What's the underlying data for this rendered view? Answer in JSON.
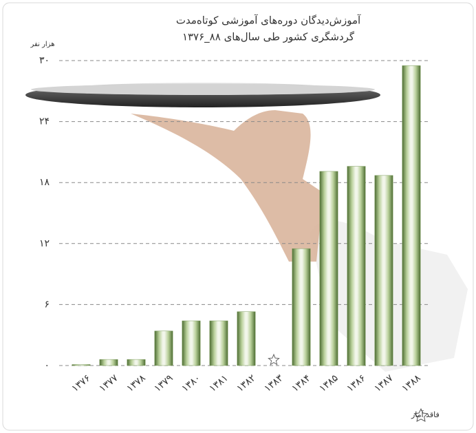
{
  "chart_data": {
    "type": "bar",
    "title": "آموزش‌دیدگان دوره‌های آموزشی کوتاه‌مدت",
    "subtitle": "گردشگری کشور طی سال‌های ۸۸_۱۳۷۶",
    "y_label": "هزار نفر",
    "note": "فاقد آمار",
    "categories": [
      "۱۳۷۶",
      "۱۳۷۷",
      "۱۳۷۸",
      "۱۳۷۹",
      "۱۳۸۰",
      "۱۳۸۱",
      "۱۳۸۲",
      "۱۳۸۳",
      "۱۳۸۴",
      "۱۳۸۵",
      "۱۳۸۶",
      "۱۳۸۷",
      "۱۳۸۸"
    ],
    "values": [
      0.1,
      0.6,
      0.6,
      3.4,
      4.4,
      4.4,
      5.3,
      null,
      11.5,
      19.1,
      19.6,
      18.7,
      29.5
    ],
    "color": "#7a9a5a",
    "ylim": [
      0,
      30
    ],
    "yticks": [
      {
        "value": 0,
        "label": "۰"
      },
      {
        "value": 6,
        "label": "۶"
      },
      {
        "value": 12,
        "label": "۱۲"
      },
      {
        "value": 18,
        "label": "۱۸"
      },
      {
        "value": 24,
        "label": "۲۴"
      },
      {
        "value": 30,
        "label": "۳۰"
      }
    ],
    "grid": true
  }
}
